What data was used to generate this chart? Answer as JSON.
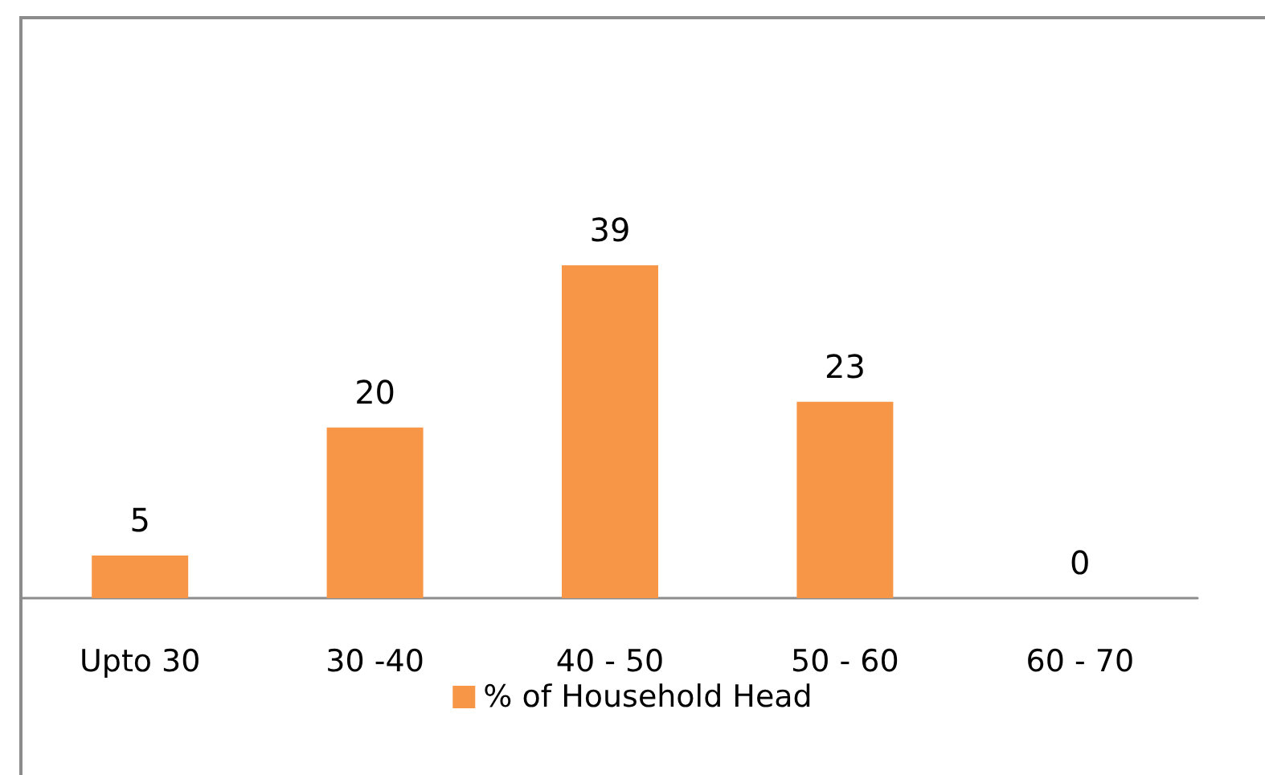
{
  "chart_data": {
    "type": "bar",
    "categories": [
      "Upto 30",
      "30 -40",
      "40 - 50",
      "50 - 60",
      "60 - 70"
    ],
    "series": [
      {
        "name": "% of Household Head",
        "color": "#f79646",
        "values": [
          5,
          20,
          39,
          23,
          0
        ]
      }
    ],
    "data_labels": true,
    "legend": "bottom"
  }
}
